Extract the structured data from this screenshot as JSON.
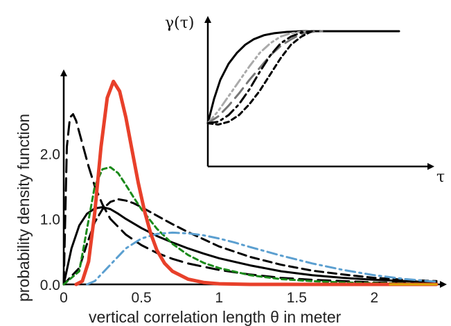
{
  "chart_data": [
    {
      "type": "line",
      "title": "",
      "xlabel": "vertical correlation length θ in meter",
      "ylabel": "probability density function",
      "xlim": [
        0,
        2.4
      ],
      "ylim": [
        0,
        3.2
      ],
      "xticks": [
        {
          "value": 0,
          "label": "0"
        },
        {
          "value": 0.5,
          "label": "0.5"
        },
        {
          "value": 1,
          "label": "1"
        },
        {
          "value": 1.5,
          "label": "1.5"
        },
        {
          "value": 2,
          "label": "2"
        }
      ],
      "yticks": [
        {
          "value": 0,
          "label": "0.0"
        },
        {
          "value": 1,
          "label": "1.0"
        },
        {
          "value": 2,
          "label": "2.0"
        }
      ],
      "grid": false,
      "legend": "none",
      "series": [
        {
          "color": "#000000",
          "dash": "solid",
          "width": 3,
          "x": [
            0,
            0.05,
            0.1,
            0.15,
            0.2,
            0.25,
            0.3,
            0.35,
            0.4,
            0.5,
            0.6,
            0.7,
            0.8,
            0.9,
            1.0,
            1.2,
            1.4,
            1.6,
            1.8,
            2.0,
            2.2,
            2.4
          ],
          "y": [
            0,
            0.55,
            0.9,
            1.08,
            1.16,
            1.18,
            1.15,
            1.08,
            1.0,
            0.86,
            0.74,
            0.64,
            0.55,
            0.47,
            0.4,
            0.29,
            0.2,
            0.14,
            0.1,
            0.07,
            0.05,
            0.03
          ]
        },
        {
          "color": "#000000",
          "dash": "long-dash",
          "width": 3,
          "x": [
            0,
            0.02,
            0.04,
            0.06,
            0.08,
            0.12,
            0.16,
            0.2,
            0.25,
            0.3,
            0.4,
            0.5,
            0.6,
            0.7,
            0.8,
            1.0,
            1.2,
            1.4,
            1.6,
            1.8,
            2.0,
            2.4
          ],
          "y": [
            0,
            2.1,
            2.55,
            2.6,
            2.5,
            2.15,
            1.8,
            1.5,
            1.22,
            1.0,
            0.76,
            0.6,
            0.48,
            0.39,
            0.32,
            0.22,
            0.15,
            0.1,
            0.07,
            0.05,
            0.03,
            0.02
          ]
        },
        {
          "color": "#000000",
          "dash": "dash",
          "width": 3,
          "x": [
            0,
            0.1,
            0.15,
            0.2,
            0.25,
            0.3,
            0.35,
            0.4,
            0.45,
            0.5,
            0.6,
            0.7,
            0.8,
            0.9,
            1.0,
            1.2,
            1.4,
            1.6,
            1.8,
            2.0,
            2.2,
            2.4
          ],
          "y": [
            0,
            0.25,
            0.62,
            0.95,
            1.15,
            1.26,
            1.3,
            1.28,
            1.24,
            1.18,
            1.05,
            0.92,
            0.8,
            0.69,
            0.58,
            0.42,
            0.3,
            0.21,
            0.15,
            0.1,
            0.07,
            0.05
          ]
        },
        {
          "color": "#1a8a1a",
          "dash": "short-dash",
          "width": 3,
          "x": [
            0,
            0.1,
            0.15,
            0.2,
            0.25,
            0.3,
            0.35,
            0.4,
            0.45,
            0.5,
            0.6,
            0.7,
            0.8,
            0.9,
            1.0,
            1.2,
            1.4,
            1.6,
            1.8,
            2.0,
            2.4
          ],
          "y": [
            0,
            0.2,
            0.85,
            1.5,
            1.76,
            1.79,
            1.7,
            1.52,
            1.33,
            1.15,
            0.85,
            0.62,
            0.45,
            0.33,
            0.25,
            0.14,
            0.08,
            0.05,
            0.03,
            0.02,
            0.01
          ]
        },
        {
          "color": "#5b9fd0",
          "dash": "dash-dot",
          "width": 3,
          "x": [
            0.15,
            0.2,
            0.3,
            0.4,
            0.5,
            0.6,
            0.7,
            0.8,
            0.9,
            1.0,
            1.1,
            1.2,
            1.4,
            1.6,
            1.8,
            2.0,
            2.2,
            2.4
          ],
          "y": [
            0,
            0.05,
            0.3,
            0.55,
            0.7,
            0.77,
            0.79,
            0.78,
            0.75,
            0.7,
            0.64,
            0.57,
            0.44,
            0.32,
            0.22,
            0.14,
            0.08,
            0.04
          ]
        },
        {
          "color": "#e8402a",
          "dash": "solid",
          "width": 5,
          "x": [
            0.08,
            0.12,
            0.16,
            0.2,
            0.24,
            0.28,
            0.32,
            0.36,
            0.4,
            0.44,
            0.48,
            0.52,
            0.56,
            0.6,
            0.65,
            0.7,
            0.8,
            0.9,
            1.0,
            1.2,
            1.4,
            1.6,
            2.0,
            2.4
          ],
          "y": [
            0,
            0.05,
            0.35,
            1.1,
            2.1,
            2.85,
            3.1,
            2.95,
            2.55,
            2.05,
            1.55,
            1.12,
            0.78,
            0.52,
            0.32,
            0.2,
            0.08,
            0.03,
            0.01,
            0,
            0,
            0,
            0,
            0
          ]
        },
        {
          "color": "#d9a800",
          "dash": "solid",
          "width": 3,
          "x": [
            2.1,
            2.4
          ],
          "y": [
            0,
            0
          ]
        }
      ]
    },
    {
      "type": "line",
      "title": "",
      "xlabel": "τ",
      "ylabel": "γ(τ)",
      "inset": true,
      "xlim": [
        0,
        1
      ],
      "ylim": [
        0,
        1
      ],
      "grid": false,
      "legend": "none",
      "series": [
        {
          "color": "#000000",
          "dash": "solid",
          "width": 3,
          "x": [
            0,
            0.03,
            0.06,
            0.1,
            0.14,
            0.18,
            0.22,
            0.27,
            0.32,
            0.38,
            0.45,
            0.5,
            0.6,
            0.7,
            0.8,
            0.92
          ],
          "y": [
            0.32,
            0.5,
            0.64,
            0.76,
            0.84,
            0.9,
            0.94,
            0.97,
            0.985,
            0.995,
            1.0,
            1.0,
            1.0,
            1.0,
            1.0,
            1.0
          ]
        },
        {
          "color": "#aaaaaa",
          "dash": "dash-dot-dot",
          "width": 3,
          "x": [
            0,
            0.05,
            0.1,
            0.15,
            0.2,
            0.25,
            0.3,
            0.35,
            0.4,
            0.45,
            0.5
          ],
          "y": [
            0.32,
            0.41,
            0.52,
            0.63,
            0.74,
            0.84,
            0.91,
            0.96,
            0.985,
            0.995,
            1.0
          ]
        },
        {
          "color": "#777777",
          "dash": "long-dash",
          "width": 3,
          "x": [
            0,
            0.05,
            0.1,
            0.15,
            0.2,
            0.25,
            0.3,
            0.35,
            0.4,
            0.45,
            0.5,
            0.55
          ],
          "y": [
            0.32,
            0.37,
            0.45,
            0.54,
            0.64,
            0.73,
            0.82,
            0.89,
            0.94,
            0.98,
            0.995,
            1.0
          ]
        },
        {
          "color": "#000000",
          "dash": "dash-dot",
          "width": 3,
          "x": [
            0,
            0.05,
            0.1,
            0.15,
            0.2,
            0.25,
            0.3,
            0.35,
            0.4,
            0.45,
            0.5
          ],
          "y": [
            0.32,
            0.33,
            0.38,
            0.46,
            0.57,
            0.7,
            0.82,
            0.91,
            0.96,
            0.99,
            1.0
          ]
        },
        {
          "color": "#000000",
          "dash": "short-dash",
          "width": 3,
          "x": [
            0,
            0.05,
            0.1,
            0.15,
            0.2,
            0.25,
            0.3,
            0.35,
            0.4,
            0.45,
            0.5
          ],
          "y": [
            0.32,
            0.31,
            0.33,
            0.38,
            0.46,
            0.56,
            0.68,
            0.8,
            0.9,
            0.96,
            1.0
          ]
        }
      ]
    }
  ]
}
